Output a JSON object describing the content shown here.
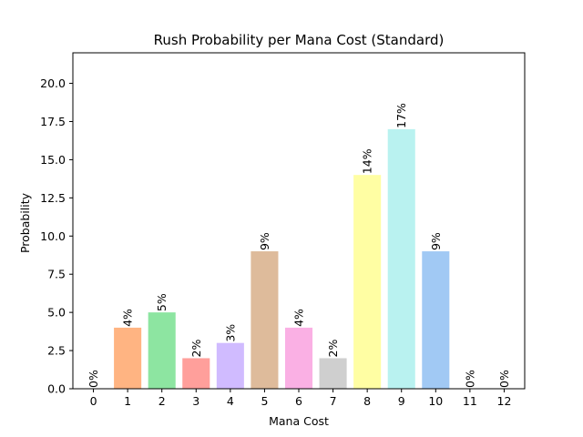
{
  "chart_data": {
    "type": "bar",
    "title": "Rush Probability per Mana Cost (Standard)",
    "xlabel": "Mana Cost",
    "ylabel": "Probability",
    "categories": [
      "0",
      "1",
      "2",
      "3",
      "4",
      "5",
      "6",
      "7",
      "8",
      "9",
      "10",
      "11",
      "12"
    ],
    "values": [
      0,
      4,
      5,
      2,
      3,
      9,
      4,
      2,
      14,
      17,
      9,
      0,
      0
    ],
    "data_labels": [
      "0%",
      "4%",
      "5%",
      "2%",
      "3%",
      "9%",
      "4%",
      "2%",
      "14%",
      "17%",
      "9%",
      "0%",
      "0%"
    ],
    "ylim": [
      0,
      22
    ],
    "yticks": [
      0.0,
      2.5,
      5.0,
      7.5,
      10.0,
      12.5,
      15.0,
      17.5,
      20.0
    ],
    "ytick_labels": [
      "0.0",
      "2.5",
      "5.0",
      "7.5",
      "10.0",
      "12.5",
      "15.0",
      "17.5",
      "20.0"
    ],
    "colors": [
      "#a1c9f4",
      "#ffb482",
      "#8de5a1",
      "#ff9f9b",
      "#d0bbff",
      "#debb9b",
      "#fab0e4",
      "#cfcfcf",
      "#fffea3",
      "#b9f2f0",
      "#a1c9f4",
      "#ffb482",
      "#8de5a1"
    ],
    "grid": false,
    "legend": "none"
  }
}
